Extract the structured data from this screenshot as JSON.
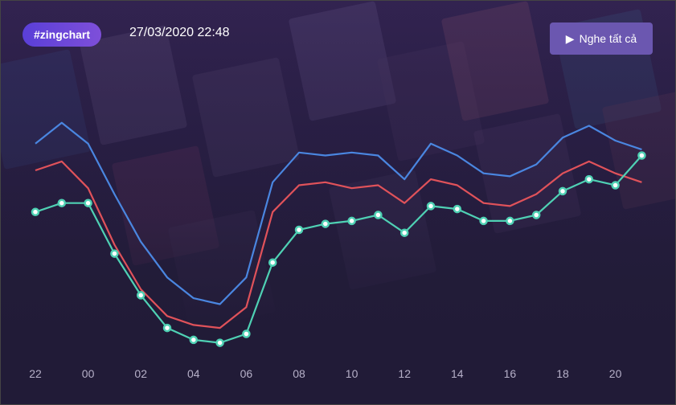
{
  "header": {
    "tag_label": "#zingchart",
    "timestamp": "27/03/2020 22:48",
    "play_all_label": "Nghe tất cả",
    "play_icon": "play-icon"
  },
  "colors": {
    "background": "#231d39",
    "tag": "#5a3fd8",
    "button": "#6b57b0",
    "series_blue": "#4a86e0",
    "series_red": "#e0525a",
    "series_green": "#4fd1b4"
  },
  "chart_data": {
    "type": "line",
    "x": [
      "22",
      "23",
      "00",
      "01",
      "02",
      "03",
      "04",
      "05",
      "06",
      "07",
      "08",
      "09",
      "10",
      "11",
      "12",
      "13",
      "14",
      "15",
      "16",
      "17",
      "18",
      "19",
      "20",
      "21"
    ],
    "x_tick_labels": [
      "22",
      "00",
      "02",
      "04",
      "06",
      "08",
      "10",
      "12",
      "14",
      "16",
      "18",
      "20"
    ],
    "grid": false,
    "legend": "none",
    "ylim": [
      0,
      100
    ],
    "series": [
      {
        "color": "#4a86e0",
        "markers": false,
        "values": [
          79,
          86,
          79,
          62,
          46,
          34,
          27,
          25,
          34,
          66,
          76,
          75,
          76,
          75,
          67,
          79,
          75,
          69,
          68,
          72,
          81,
          85,
          80,
          77
        ]
      },
      {
        "color": "#e0525a",
        "markers": false,
        "values": [
          70,
          73,
          64,
          45,
          30,
          21,
          18,
          17,
          24,
          56,
          65,
          66,
          64,
          65,
          59,
          67,
          65,
          59,
          58,
          62,
          69,
          73,
          69,
          66
        ]
      },
      {
        "color": "#4fd1b4",
        "markers": true,
        "values": [
          56,
          59,
          59,
          42,
          28,
          17,
          13,
          12,
          15,
          39,
          50,
          52,
          53,
          55,
          49,
          58,
          57,
          53,
          53,
          55,
          63,
          67,
          65,
          75
        ]
      }
    ]
  }
}
